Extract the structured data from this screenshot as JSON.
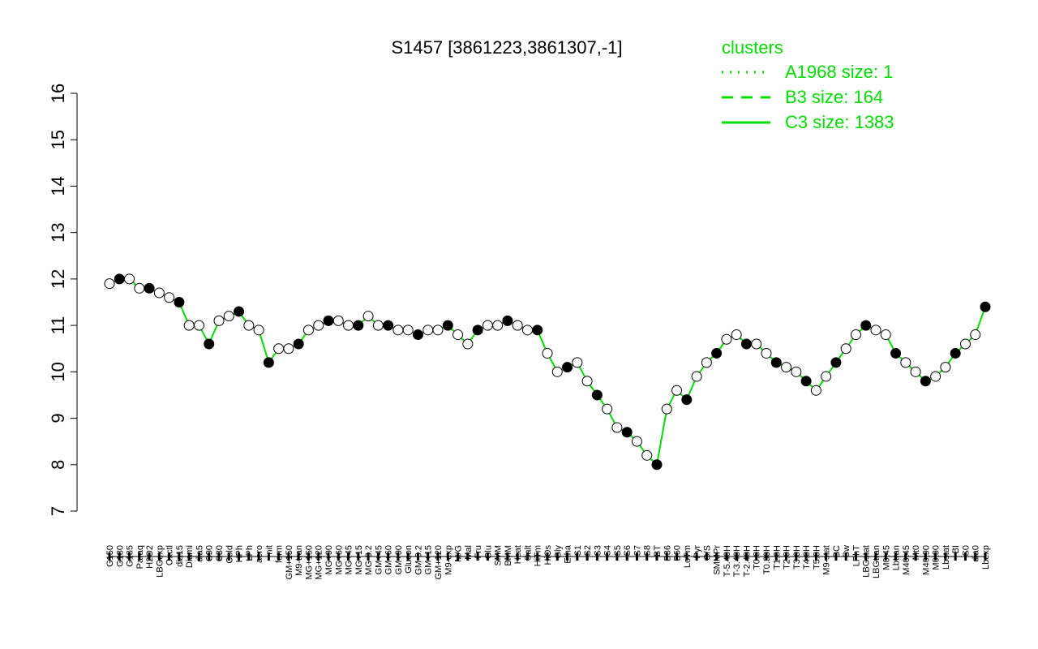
{
  "chart_data": {
    "type": "line",
    "title": "S1457 [3861223,3861307,-1]",
    "xlabel": "",
    "ylabel": "",
    "ylim": [
      7,
      16
    ],
    "yticks": [
      7,
      8,
      9,
      10,
      11,
      12,
      13,
      14,
      15,
      16
    ],
    "grid": false,
    "legend": {
      "title": "clusters",
      "placement": "top-right",
      "entries": [
        {
          "label": "A1968 size: 1",
          "style": "dotted"
        },
        {
          "label": "B3 size: 164",
          "style": "dashed"
        },
        {
          "label": "C3 size: 1383",
          "style": "solid"
        }
      ]
    },
    "colors": {
      "series": "#00dd00",
      "points_open": "#ffffff",
      "points_filled": "#000000"
    },
    "categories": [
      "G150",
      "G180",
      "G135",
      "Paraq",
      "H2O2",
      "LBGexp",
      "Oxctl",
      "dia15",
      "Diami",
      "dia5",
      "C90",
      "C30",
      "Cold",
      "HPh",
      "LPh",
      "aero",
      "nit",
      "ferm",
      "GM+150",
      "M9-tran",
      "MG+150",
      "MG+120",
      "MG+90",
      "MG+60",
      "MG+45",
      "MG+15",
      "MG-0.2",
      "GM+45",
      "GM+60",
      "GM+90",
      "Glucon",
      "GM-0.2",
      "GM+15",
      "GM+120",
      "M9-exp",
      "M/G",
      "Mal",
      "Fru",
      "Glu",
      "SMM",
      "BMM",
      "Heat",
      "Salt",
      "HiTm",
      "HiOs",
      "Gly",
      "Etha",
      "S1",
      "S2",
      "S3",
      "S4",
      "S5",
      "S6",
      "S7",
      "S8",
      "BT",
      "B36",
      "B60",
      "LoTm",
      "Pyr",
      "G/S",
      "SMMPr",
      "T-5.40H",
      "T-3.40H",
      "T-2.40H",
      "T0.0H",
      "T0.30H",
      "T1.0H",
      "T2.0H",
      "T3.0H",
      "T4.0H",
      "T5.0H",
      "M9-stat",
      "BC",
      "Sw",
      "LPhT",
      "LBGstat",
      "LBGtran",
      "M0t45",
      "Lbtran",
      "M40t45",
      "Mt0",
      "M40t90",
      "M0t90",
      "Lbstat",
      "BI",
      "S0",
      "dia0",
      "Lbexp"
    ],
    "series": [
      {
        "name": "",
        "values": [
          11.9,
          12.0,
          12.0,
          11.8,
          11.8,
          11.7,
          11.6,
          11.5,
          11.0,
          11.0,
          10.6,
          11.1,
          11.2,
          11.3,
          11.0,
          10.9,
          10.2,
          10.5,
          10.5,
          10.6,
          10.9,
          11.0,
          11.1,
          11.1,
          11.0,
          11.0,
          11.2,
          11.0,
          11.0,
          10.9,
          10.9,
          10.8,
          10.9,
          10.9,
          11.0,
          10.8,
          10.6,
          10.9,
          11.0,
          11.0,
          11.1,
          11.0,
          10.9,
          10.9,
          10.4,
          10.0,
          10.1,
          10.2,
          9.8,
          9.5,
          9.2,
          8.8,
          8.7,
          8.5,
          8.2,
          8.0,
          9.2,
          9.6,
          9.4,
          9.9,
          10.2,
          10.4,
          10.7,
          10.8,
          10.6,
          10.6,
          10.4,
          10.2,
          10.1,
          10.0,
          9.8,
          9.6,
          9.9,
          10.2,
          10.5,
          10.8,
          11.0,
          10.9,
          10.8,
          10.4,
          10.2,
          10.0,
          9.8,
          9.9,
          10.1,
          10.4,
          10.6,
          10.8,
          11.4
        ]
      }
    ]
  }
}
